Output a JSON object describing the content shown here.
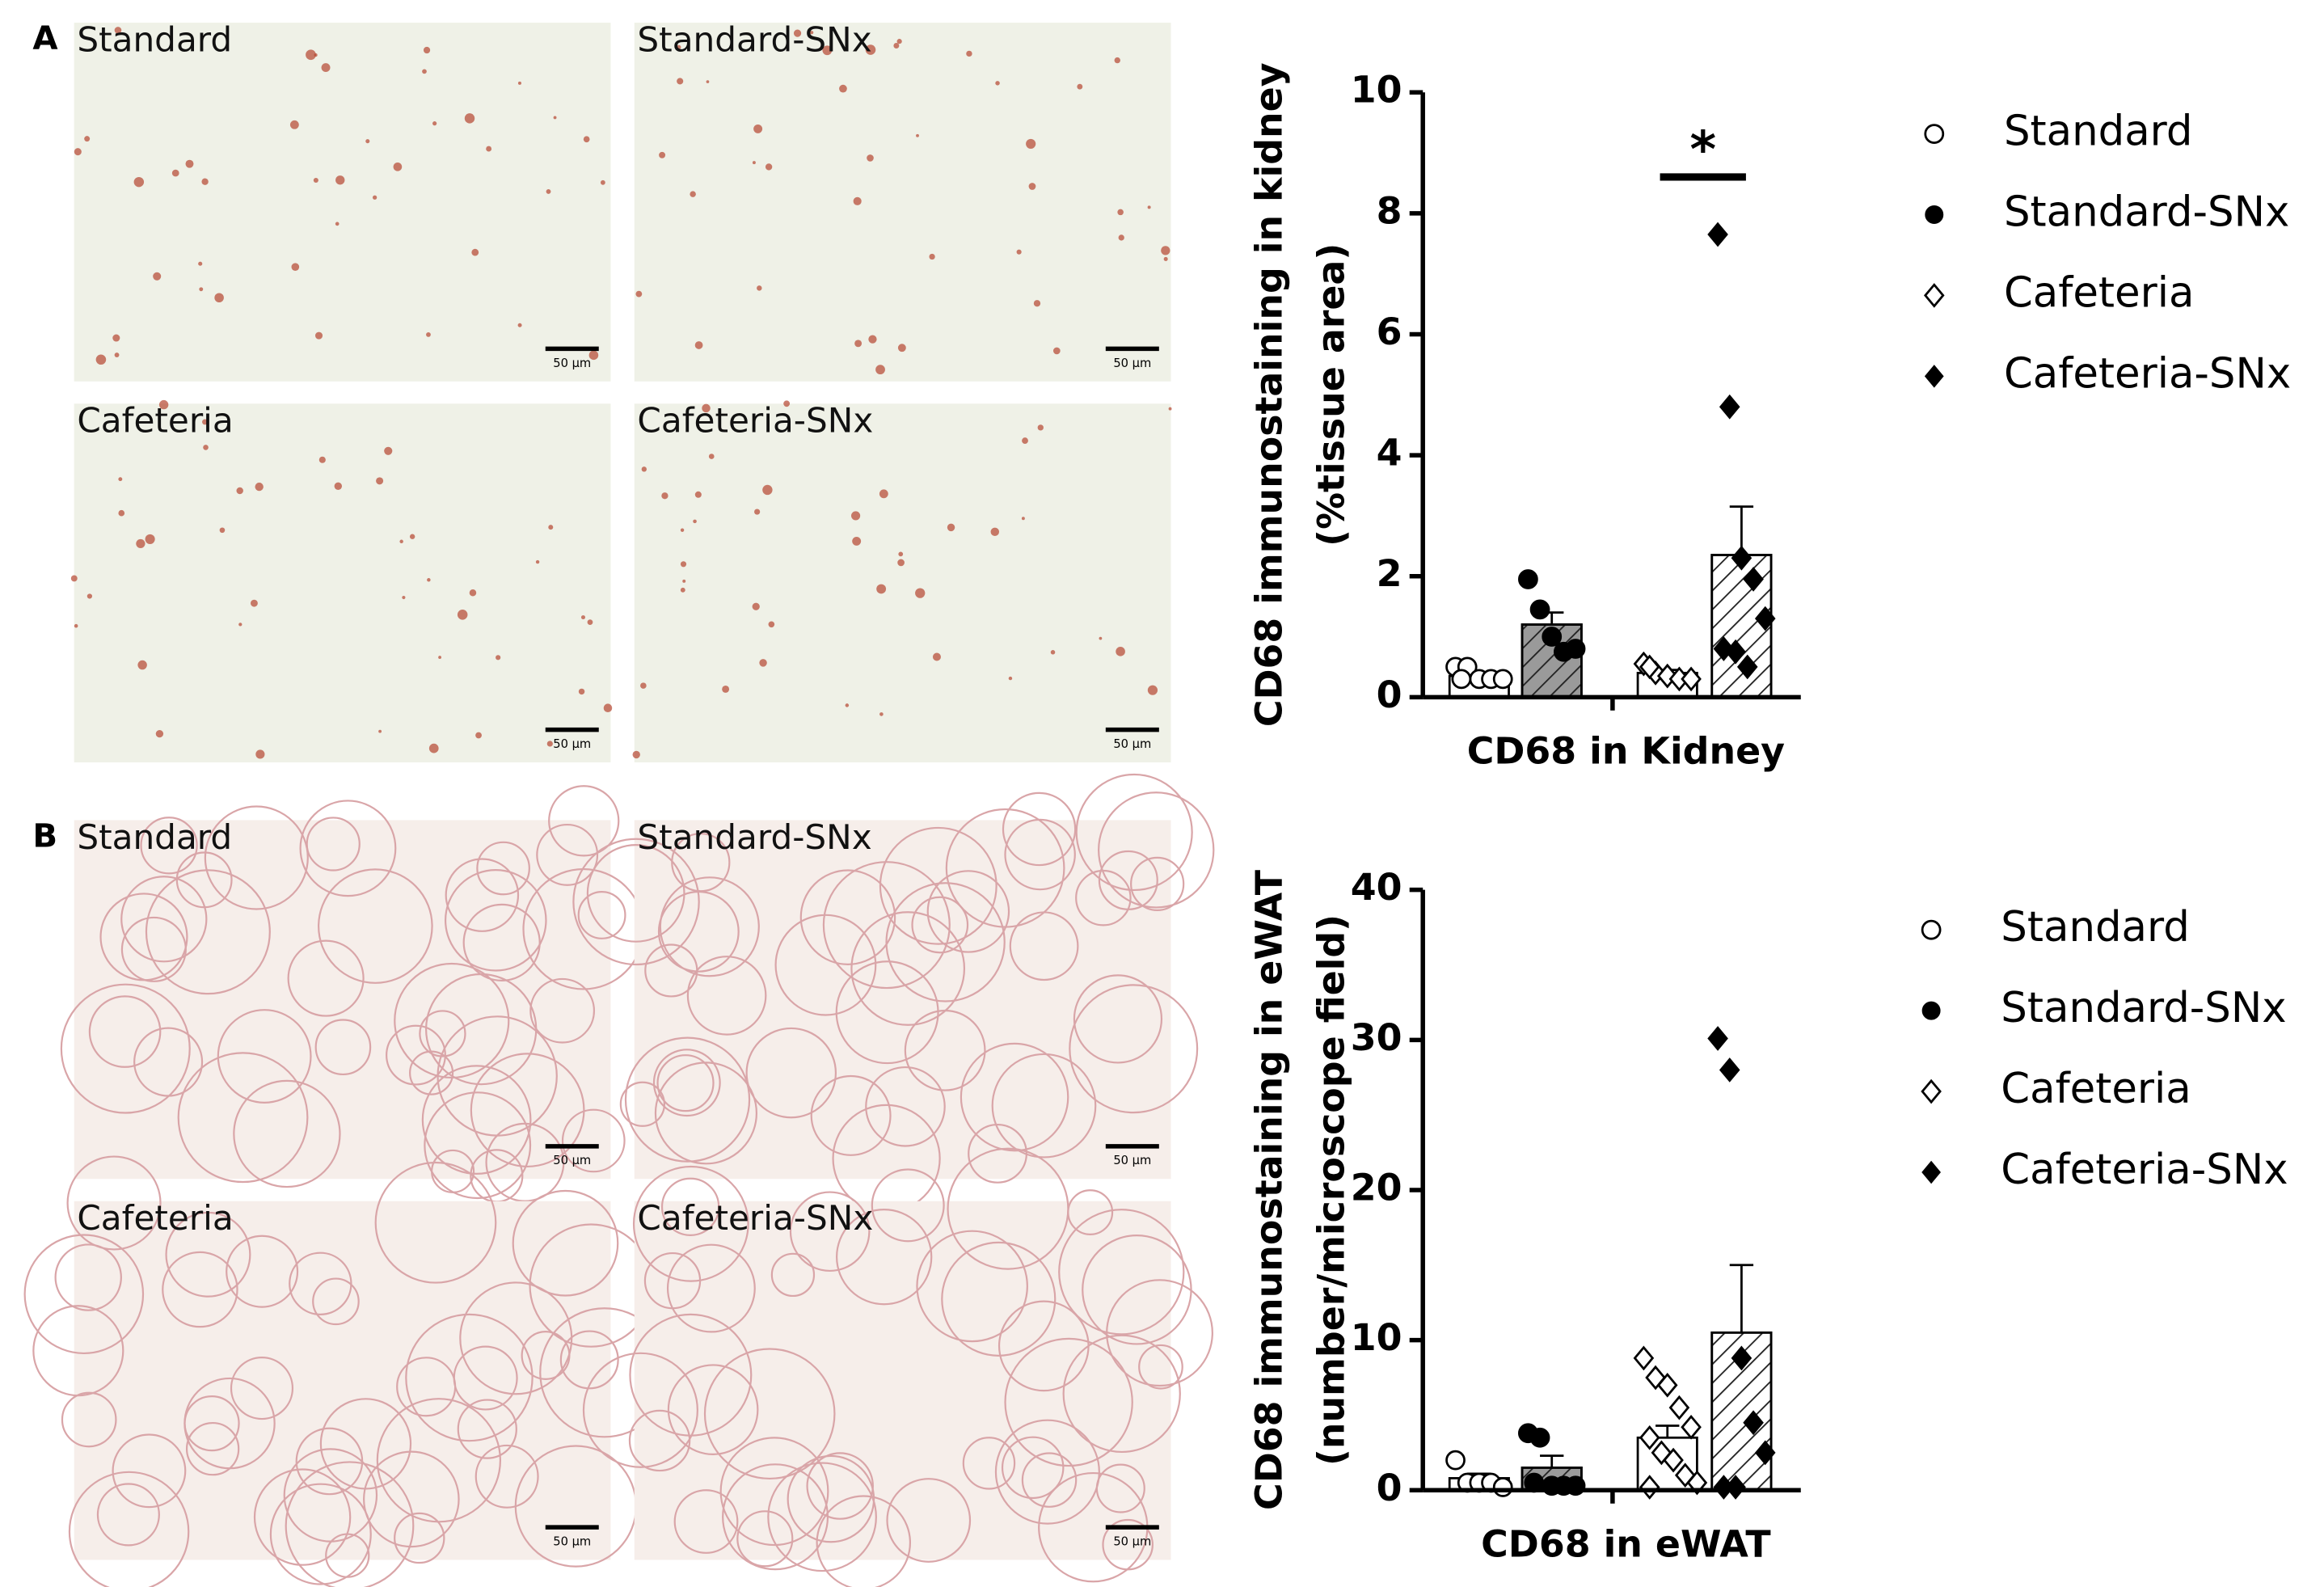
{
  "panels": [
    {
      "label": "A",
      "images": [
        "Standard",
        "Standard-SNx",
        "Cafeteria",
        "Cafeteria-SNx"
      ]
    },
    {
      "label": "B",
      "images": [
        "Standard",
        "Standard-SNx",
        "Cafeteria",
        "Cafeteria-SNx"
      ]
    }
  ],
  "scale_bar": "50 µm",
  "chart_data": [
    {
      "type": "bar",
      "y_label": [
        "CD68 immunostaining in kidney",
        "(%tissue area)"
      ],
      "categories": [
        "CD68 in Kidney"
      ],
      "ylim": [
        0,
        10
      ],
      "yticks": [
        0,
        2,
        4,
        6,
        8,
        10
      ],
      "series": [
        {
          "name": "Standard",
          "color": "#ffffff",
          "hatch": false,
          "marker": "circle",
          "marker_filled": false,
          "values": [
            0.35
          ],
          "errors": [
            0.05
          ],
          "points": [
            0.5,
            0.5,
            0.3,
            0.3,
            0.3,
            0.3
          ]
        },
        {
          "name": "Standard-SNx",
          "color": "#9a9a9a",
          "hatch": true,
          "marker": "circle",
          "marker_filled": true,
          "values": [
            1.2
          ],
          "errors": [
            0.2
          ],
          "points": [
            1.95,
            1.45,
            1.0,
            0.75,
            0.8
          ]
        },
        {
          "name": "Cafeteria",
          "color": "#ffffff",
          "hatch": false,
          "marker": "diamond",
          "marker_filled": false,
          "values": [
            0.4
          ],
          "errors": [
            0.05
          ],
          "points": [
            0.55,
            0.4,
            0.35,
            0.3,
            0.3,
            0.5
          ]
        },
        {
          "name": "Cafeteria-SNx",
          "color": "#ffffff",
          "hatch": true,
          "marker": "diamond",
          "marker_filled": true,
          "values": [
            2.35
          ],
          "errors": [
            0.8
          ],
          "points": [
            7.65,
            4.8,
            2.3,
            1.95,
            1.3,
            0.8,
            0.75,
            0.5
          ]
        }
      ],
      "significance": {
        "label": "*",
        "y": 8.6
      }
    },
    {
      "type": "bar",
      "y_label": [
        "CD68 immunostaining in eWAT",
        "(number/microscope field)"
      ],
      "categories": [
        "CD68 in eWAT"
      ],
      "ylim": [
        0,
        40
      ],
      "yticks": [
        0,
        10,
        20,
        30,
        40
      ],
      "series": [
        {
          "name": "Standard",
          "color": "#ffffff",
          "hatch": false,
          "marker": "circle",
          "marker_filled": false,
          "values": [
            0.8
          ],
          "errors": [
            0.3
          ],
          "points": [
            2.0,
            0.5,
            0.5,
            0.5,
            0.2
          ]
        },
        {
          "name": "Standard-SNx",
          "color": "#9a9a9a",
          "hatch": true,
          "marker": "circle",
          "marker_filled": true,
          "values": [
            1.5
          ],
          "errors": [
            0.8
          ],
          "points": [
            3.8,
            3.5,
            0.3,
            0.3,
            0.3,
            0.5
          ]
        },
        {
          "name": "Cafeteria",
          "color": "#ffffff",
          "hatch": false,
          "marker": "diamond",
          "marker_filled": false,
          "values": [
            3.5
          ],
          "errors": [
            0.8
          ],
          "points": [
            8.8,
            7.5,
            7.0,
            5.5,
            4.2,
            3.5,
            2.5,
            2.0,
            1.0,
            0.5,
            0.2
          ]
        },
        {
          "name": "Cafeteria-SNx",
          "color": "#ffffff",
          "hatch": true,
          "marker": "diamond",
          "marker_filled": true,
          "values": [
            10.5
          ],
          "errors": [
            4.5
          ],
          "points": [
            30.1,
            28.0,
            8.8,
            4.5,
            2.5,
            0.2,
            0.2
          ]
        }
      ]
    }
  ]
}
